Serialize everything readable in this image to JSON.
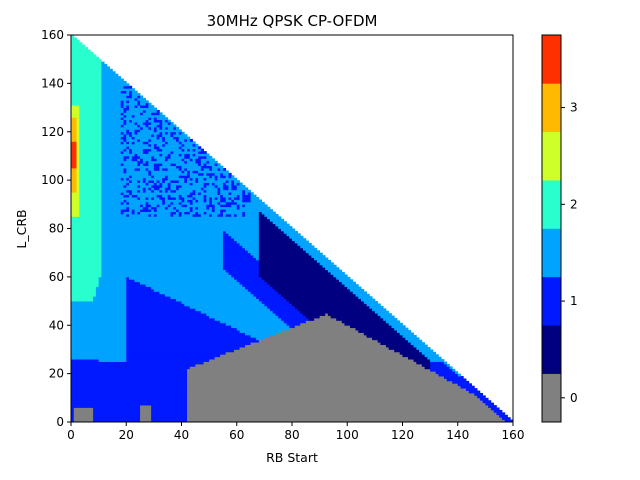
{
  "chart_data": {
    "type": "heatmap",
    "title": "30MHz QPSK CP-OFDM",
    "xlabel": "RB Start",
    "ylabel": "L_CRB",
    "xlim": [
      0,
      160
    ],
    "ylim": [
      0,
      160
    ],
    "x_ticks": [
      "0",
      "20",
      "40",
      "60",
      "80",
      "100",
      "120",
      "140",
      "160"
    ],
    "y_ticks": [
      "0",
      "20",
      "40",
      "60",
      "80",
      "100",
      "120",
      "140",
      "160"
    ],
    "valid_region": "RB Start + L_CRB <= 160",
    "colorbar": {
      "range": [
        -0.25,
        3.75
      ],
      "ticks": [
        "0",
        "1",
        "2",
        "3"
      ],
      "levels": [
        {
          "from": -0.25,
          "to": 0.25,
          "color": "#808080"
        },
        {
          "from": 0.25,
          "to": 0.75,
          "color": "#000080"
        },
        {
          "from": 0.75,
          "to": 1.25,
          "color": "#0019ff"
        },
        {
          "from": 1.25,
          "to": 1.75,
          "color": "#00a4ff"
        },
        {
          "from": 1.75,
          "to": 2.25,
          "color": "#29ffce"
        },
        {
          "from": 2.25,
          "to": 2.75,
          "color": "#ceff29"
        },
        {
          "from": 2.75,
          "to": 3.25,
          "color": "#ffb900"
        },
        {
          "from": 3.25,
          "to": 3.75,
          "color": "#ff3000"
        }
      ]
    },
    "regions": [
      {
        "value": 1.5,
        "description": "main field"
      },
      {
        "value": 2.0,
        "description": "RB Start 0-10, L_CRB 50-160"
      },
      {
        "value": 2.5,
        "description": "RB Start 0-2, L_CRB 85-130"
      },
      {
        "value": 3.0,
        "description": "RB Start 0-1, L_CRB 95-125"
      },
      {
        "value": 3.5,
        "description": "RB Start 0-1, L_CRB 105-115"
      },
      {
        "value": 1.0,
        "description": "lower band below L_CRB approx 25-50, diagonal band near RB Start 60-80, streaks RB Start 20-60 L_CRB 90-130"
      },
      {
        "value": 0.5,
        "description": "triangle RB Start 70-125 near the 160 diagonal"
      },
      {
        "value": 0.0,
        "description": "gray region RB Start 42-160 below L_CRB 50; small patches near origin and RB Start 25"
      }
    ]
  }
}
